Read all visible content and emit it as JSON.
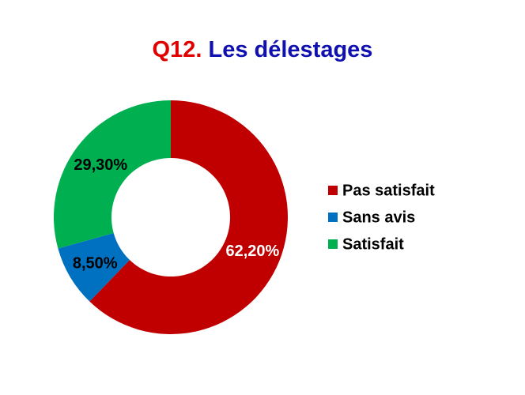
{
  "chart_data": {
    "type": "donut",
    "title": {
      "number": "Q12.",
      "text": "Les délestages"
    },
    "title_colors": [
      "#e00000",
      "#1010b0"
    ],
    "categories": [
      "Pas satisfait",
      "Sans avis",
      "Satisfait"
    ],
    "values": [
      62.2,
      8.5,
      29.3
    ],
    "value_labels": [
      "62,20%",
      "8,50%",
      "29,30%"
    ],
    "colors": [
      "#c00000",
      "#0070c0",
      "#00b050"
    ],
    "value_label_colors": [
      "#ffffff",
      "#000000",
      "#000000"
    ],
    "legend": "right"
  }
}
